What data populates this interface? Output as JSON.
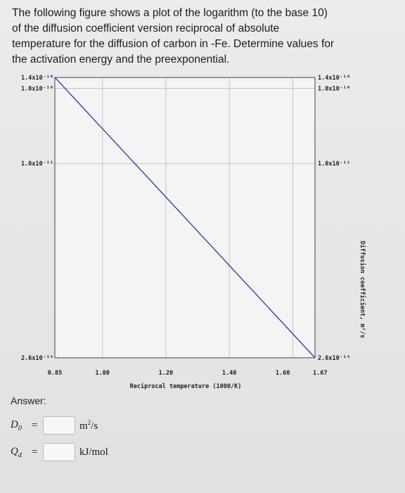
{
  "question": {
    "lines": [
      "The following figure shows a plot of the logarithm (to the base 10)",
      "of the diffusion coefficient version reciprocal of absolute",
      "temperature for the diffusion of carbon in -Fe. Determine values for",
      "the activation energy and the preexponential."
    ]
  },
  "chart_data": {
    "type": "line",
    "xlabel": "Reciprocal temperature (1000/K)",
    "ylabel": "Diffusion coefficient, m²/s",
    "xlim": [
      0.85,
      1.67
    ],
    "ylim_log10": [
      -13.585,
      -9.855
    ],
    "y_scale": "log",
    "grid": true,
    "x_ticks": [
      {
        "value": 0.85,
        "label": "0.85"
      },
      {
        "value": 1.0,
        "label": "1.00"
      },
      {
        "value": 1.2,
        "label": "1.20"
      },
      {
        "value": 1.4,
        "label": "1.40"
      },
      {
        "value": 1.6,
        "label": "1.60"
      },
      {
        "value": 1.67,
        "label": "1.67"
      }
    ],
    "y_ticks_left": [
      {
        "log10": -9.855,
        "label": "1.4x10⁻¹⁰"
      },
      {
        "log10": -10.0,
        "label": "1.0x10⁻¹⁰"
      },
      {
        "log10": -11.0,
        "label": "1.0x10⁻¹¹"
      },
      {
        "log10": -13.585,
        "label": "2.6x10⁻¹⁴"
      }
    ],
    "y_ticks_right": [
      {
        "log10": -9.855,
        "label": "1.4x10⁻¹⁰"
      },
      {
        "log10": -10.0,
        "label": "1.0x10⁻¹⁰"
      },
      {
        "log10": -11.0,
        "label": "1.0x10⁻¹¹"
      },
      {
        "log10": -13.585,
        "label": "2.6x10⁻¹⁴"
      }
    ],
    "series": [
      {
        "x": [
          0.85,
          1.67
        ],
        "y": [
          1.4e-10,
          2.6e-14
        ],
        "color": "#2b4aa0"
      }
    ]
  },
  "answer": {
    "label": "Answer:",
    "d0": {
      "var": "D",
      "sub": "0",
      "eq": "=",
      "value": "",
      "unit": "m",
      "unit_sup": "2",
      "unit_rest": "/s"
    },
    "qd": {
      "var": "Q",
      "sub": "d",
      "eq": "=",
      "value": "",
      "unit": "kJ/mol"
    }
  }
}
